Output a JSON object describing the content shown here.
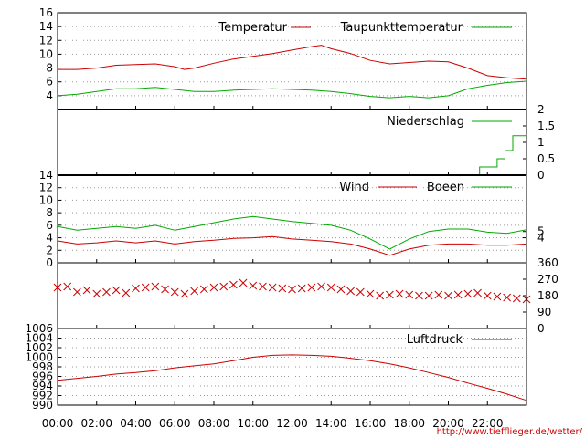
{
  "source_url": "http://www.tiefflieger.de/wetter/",
  "x_tick_labels": [
    "00:00",
    "02:00",
    "04:00",
    "06:00",
    "08:00",
    "10:00",
    "12:00",
    "14:00",
    "16:00",
    "18:00",
    "20:00",
    "22:00"
  ],
  "colors": {
    "red": "#cc0000",
    "green": "#00aa00",
    "grid": "#999999",
    "frame": "#000000"
  },
  "chart_data": [
    {
      "type": "line",
      "x_unit": "hour",
      "xlim": [
        0,
        24
      ],
      "ylim": [
        2,
        16
      ],
      "y_ticks": [
        4,
        6,
        8,
        10,
        12,
        14,
        16
      ],
      "grid": true,
      "legend": "top-right",
      "series": [
        {
          "name": "Temperatur",
          "color": "#cc0000",
          "x": [
            0,
            1,
            2,
            3,
            4,
            5,
            6,
            6.5,
            7,
            8,
            9,
            10,
            11,
            12,
            13,
            13.5,
            14,
            15,
            16,
            17,
            18,
            19,
            20,
            21,
            22,
            23,
            24
          ],
          "y": [
            7.8,
            7.8,
            8.0,
            8.4,
            8.5,
            8.6,
            8.2,
            7.8,
            8.0,
            8.7,
            9.3,
            9.7,
            10.1,
            10.6,
            11.1,
            11.3,
            10.8,
            10.1,
            9.1,
            8.6,
            8.8,
            9.0,
            8.9,
            8.0,
            6.9,
            6.6,
            6.4
          ]
        },
        {
          "name": "Taupunkttemperatur",
          "color": "#00aa00",
          "x": [
            0,
            1,
            2,
            3,
            4,
            5,
            6,
            7,
            8,
            9,
            10,
            11,
            12,
            13,
            14,
            15,
            16,
            17,
            18,
            19,
            20,
            21,
            22,
            23,
            24
          ],
          "y": [
            4.0,
            4.2,
            4.6,
            5.0,
            5.0,
            5.2,
            4.9,
            4.6,
            4.6,
            4.8,
            4.9,
            5.0,
            4.9,
            4.8,
            4.6,
            4.3,
            3.9,
            3.7,
            3.9,
            3.7,
            4.0,
            5.0,
            5.5,
            5.9,
            6.1
          ]
        }
      ]
    },
    {
      "type": "line",
      "x_unit": "hour",
      "xlim": [
        0,
        24
      ],
      "ylim": [
        0,
        2
      ],
      "y_ticks": [
        "0",
        "0.5",
        "1",
        "1.5",
        "2"
      ],
      "y_axis_side": "right",
      "legend": "top-right",
      "series": [
        {
          "name": "Niederschlag",
          "color": "#00aa00",
          "x": [
            0,
            21.6,
            21.6,
            22.5,
            22.5,
            22.9,
            22.9,
            23.3,
            23.3,
            24
          ],
          "y": [
            0,
            0,
            0.25,
            0.25,
            0.5,
            0.5,
            0.75,
            0.75,
            1.2,
            1.2
          ]
        }
      ]
    },
    {
      "type": "line",
      "x_unit": "hour",
      "xlim": [
        0,
        24
      ],
      "ylim": [
        0,
        14
      ],
      "y_ticks": [
        0,
        2,
        4,
        6,
        8,
        10,
        12,
        14
      ],
      "y2_ticks": [
        4,
        5
      ],
      "grid": true,
      "legend": "top-right",
      "series": [
        {
          "name": "Wind",
          "color": "#cc0000",
          "x": [
            0,
            1,
            2,
            3,
            4,
            5,
            6,
            7,
            8,
            9,
            10,
            11,
            12,
            13,
            14,
            15,
            16,
            17,
            18,
            19,
            20,
            21,
            22,
            23,
            24
          ],
          "y": [
            3.5,
            3.0,
            3.2,
            3.5,
            3.2,
            3.5,
            3.0,
            3.4,
            3.6,
            3.9,
            4.0,
            4.2,
            3.8,
            3.6,
            3.4,
            3.0,
            2.2,
            1.2,
            2.2,
            2.8,
            3.0,
            3.0,
            2.8,
            2.8,
            3.0
          ]
        },
        {
          "name": "Boeen",
          "color": "#00aa00",
          "x": [
            0,
            1,
            2,
            3,
            4,
            5,
            6,
            7,
            8,
            9,
            10,
            11,
            12,
            13,
            14,
            15,
            16,
            17,
            18,
            19,
            20,
            21,
            22,
            23,
            24
          ],
          "y": [
            5.8,
            5.2,
            5.5,
            5.8,
            5.5,
            6.0,
            5.2,
            5.8,
            6.4,
            7.0,
            7.4,
            7.0,
            6.6,
            6.3,
            6.0,
            5.2,
            3.8,
            2.2,
            3.8,
            5.0,
            5.4,
            5.4,
            4.9,
            4.7,
            5.3
          ]
        }
      ]
    },
    {
      "type": "scatter",
      "x_unit": "hour",
      "xlim": [
        0,
        24
      ],
      "ylim": [
        0,
        360
      ],
      "y_ticks": [
        0,
        90,
        180,
        270,
        360
      ],
      "y_axis_side": "right",
      "marker": "x",
      "series": [
        {
          "color": "#cc0000",
          "x": [
            0,
            0.5,
            1,
            1.5,
            2,
            2.5,
            3,
            3.5,
            4,
            4.5,
            5,
            5.5,
            6,
            6.5,
            7,
            7.5,
            8,
            8.5,
            9,
            9.5,
            10,
            10.5,
            11,
            11.5,
            12,
            12.5,
            13,
            13.5,
            14,
            14.5,
            15,
            15.5,
            16,
            16.5,
            17,
            17.5,
            18,
            18.5,
            19,
            19.5,
            20,
            20.5,
            21,
            21.5,
            22,
            22.5,
            23,
            23.5,
            24
          ],
          "y": [
            225,
            230,
            200,
            210,
            190,
            200,
            210,
            195,
            220,
            225,
            230,
            215,
            200,
            190,
            205,
            215,
            225,
            230,
            240,
            250,
            235,
            230,
            225,
            220,
            215,
            220,
            225,
            230,
            225,
            215,
            205,
            200,
            190,
            180,
            185,
            190,
            185,
            180,
            180,
            185,
            180,
            185,
            190,
            195,
            180,
            175,
            170,
            165,
            160
          ]
        }
      ]
    },
    {
      "type": "line",
      "x_unit": "hour",
      "xlim": [
        0,
        24
      ],
      "ylim": [
        990,
        1006
      ],
      "y_ticks": [
        990,
        992,
        994,
        996,
        998,
        1000,
        1002,
        1004,
        1006
      ],
      "grid": true,
      "legend": "top-right",
      "series": [
        {
          "name": "Luftdruck",
          "color": "#cc0000",
          "x": [
            0,
            1,
            2,
            3,
            4,
            5,
            6,
            7,
            8,
            9,
            10,
            11,
            12,
            13,
            14,
            15,
            16,
            17,
            18,
            19,
            20,
            21,
            22,
            23,
            24
          ],
          "y": [
            995.2,
            995.6,
            996.0,
            996.5,
            996.8,
            997.2,
            997.8,
            998.2,
            998.6,
            999.3,
            1000.0,
            1000.4,
            1000.5,
            1000.4,
            1000.2,
            999.8,
            999.3,
            998.6,
            997.8,
            996.8,
            995.8,
            994.6,
            993.5,
            992.3,
            991.0
          ]
        }
      ]
    }
  ]
}
